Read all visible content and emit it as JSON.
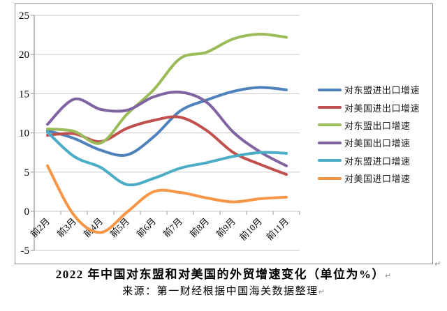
{
  "chart_data": {
    "type": "line",
    "title": "2022 年中国对东盟和对美国的外贸增速变化（单位为%）",
    "categories": [
      "前2月",
      "前3月",
      "前4月",
      "前5月",
      "前6月",
      "前7月",
      "前8月",
      "前9月",
      "前10月",
      "前11月"
    ],
    "series": [
      {
        "id": "asean-total-growth",
        "name": "对东盟进出口增速",
        "color": "#4F81BD",
        "values": [
          10.3,
          9.3,
          7.8,
          7.2,
          9.5,
          12.8,
          14.2,
          15.3,
          15.8,
          15.5
        ]
      },
      {
        "id": "us-total-growth",
        "name": "对美国进出口增速",
        "color": "#C0504D",
        "values": [
          9.7,
          9.9,
          8.9,
          10.6,
          11.6,
          12.0,
          10.3,
          7.5,
          6.0,
          4.7
        ]
      },
      {
        "id": "asean-export-growth",
        "name": "对东盟出口增速",
        "color": "#9BBB59",
        "values": [
          10.5,
          10.2,
          8.7,
          12.4,
          15.5,
          19.5,
          20.3,
          22.0,
          22.6,
          22.2
        ]
      },
      {
        "id": "us-export-growth",
        "name": "对美国出口增速",
        "color": "#8064A2",
        "values": [
          11.1,
          14.3,
          13.0,
          12.9,
          14.6,
          15.2,
          13.9,
          10.1,
          7.6,
          5.8
        ]
      },
      {
        "id": "asean-import-growth",
        "name": "对东盟进口增速",
        "color": "#4BACC6",
        "values": [
          10.1,
          7.0,
          5.6,
          3.4,
          4.2,
          5.5,
          6.2,
          7.0,
          7.5,
          7.4
        ]
      },
      {
        "id": "us-import-growth",
        "name": "对美国进口增速",
        "color": "#F79646",
        "values": [
          5.8,
          -0.5,
          -2.7,
          -0.1,
          2.5,
          2.4,
          1.7,
          1.2,
          1.6,
          1.8
        ]
      }
    ],
    "ylim": [
      -5,
      25
    ],
    "yticks": [
      25,
      20,
      15,
      10,
      5,
      0,
      -5
    ],
    "grid": true,
    "legend_position": "right",
    "line_smoothing": true,
    "axis_color": "#a6a6a6",
    "grid_color": "#d2d2d2"
  },
  "caption": {
    "title": "2022 年中国对东盟和对美国的外贸增速变化（单位为%）",
    "source": "来源：第一财经根据中国海关数据整理",
    "return_mark": "↵"
  }
}
